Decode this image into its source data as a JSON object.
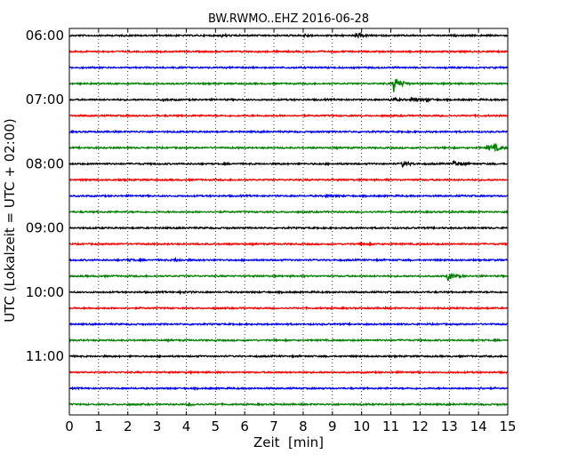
{
  "chart_data": {
    "type": "line",
    "title": "BW.RWMO..EHZ 2016-06-28",
    "xlabel": "Zeit  [min]",
    "ylabel": "UTC (Lokalzeit = UTC + 02:00)",
    "xlim": [
      0,
      15
    ],
    "x_ticks": [
      "0",
      "1",
      "2",
      "3",
      "4",
      "5",
      "6",
      "7",
      "8",
      "9",
      "10",
      "11",
      "12",
      "13",
      "14",
      "15"
    ],
    "y_ticks": [
      "06:00",
      "07:00",
      "08:00",
      "09:00",
      "10:00",
      "11:00"
    ],
    "grid": true,
    "colors": [
      "#000000",
      "#ff0000",
      "#0000ff",
      "#008000"
    ],
    "traces": [
      {
        "start": "06:00",
        "events": [
          {
            "t": 9.8,
            "amp": 0.25
          },
          {
            "t": 5.2,
            "amp": 0.12
          },
          {
            "t": 8.0,
            "amp": 0.12
          }
        ]
      },
      {
        "start": "06:15",
        "events": []
      },
      {
        "start": "06:30",
        "events": []
      },
      {
        "start": "06:45",
        "events": [
          {
            "t": 11.1,
            "amp": 0.9
          }
        ]
      },
      {
        "start": "07:00",
        "events": [
          {
            "t": 11.0,
            "amp": 0.2
          },
          {
            "t": 11.7,
            "amp": 0.22
          },
          {
            "t": 12.2,
            "amp": 0.12
          },
          {
            "t": 3.2,
            "amp": 0.1
          }
        ]
      },
      {
        "start": "07:15",
        "events": []
      },
      {
        "start": "07:30",
        "events": []
      },
      {
        "start": "07:45",
        "events": [
          {
            "t": 14.3,
            "amp": 0.35
          },
          {
            "t": 14.55,
            "amp": 0.3
          }
        ]
      },
      {
        "start": "08:00",
        "events": [
          {
            "t": 11.4,
            "amp": 0.3
          },
          {
            "t": 13.15,
            "amp": 0.35
          }
        ]
      },
      {
        "start": "08:15",
        "events": []
      },
      {
        "start": "08:30",
        "events": [
          {
            "t": 8.8,
            "amp": 0.12
          }
        ]
      },
      {
        "start": "08:45",
        "events": []
      },
      {
        "start": "09:00",
        "events": []
      },
      {
        "start": "09:15",
        "events": [
          {
            "t": 10.0,
            "amp": 0.1
          }
        ]
      },
      {
        "start": "09:30",
        "events": [
          {
            "t": 3.6,
            "amp": 0.15
          },
          {
            "t": 2.0,
            "amp": 0.1
          }
        ]
      },
      {
        "start": "09:45",
        "events": [
          {
            "t": 12.95,
            "amp": 0.45
          }
        ]
      },
      {
        "start": "10:00",
        "events": [
          {
            "t": 3.8,
            "amp": 0.1
          }
        ]
      },
      {
        "start": "10:15",
        "events": []
      },
      {
        "start": "10:30",
        "events": []
      },
      {
        "start": "10:45",
        "events": []
      },
      {
        "start": "11:00",
        "events": []
      },
      {
        "start": "11:15",
        "events": []
      },
      {
        "start": "11:30",
        "events": [
          {
            "t": 14.0,
            "amp": 0.08
          }
        ]
      },
      {
        "start": "11:45",
        "events": [
          {
            "t": 4.1,
            "amp": 0.1
          }
        ]
      }
    ]
  }
}
